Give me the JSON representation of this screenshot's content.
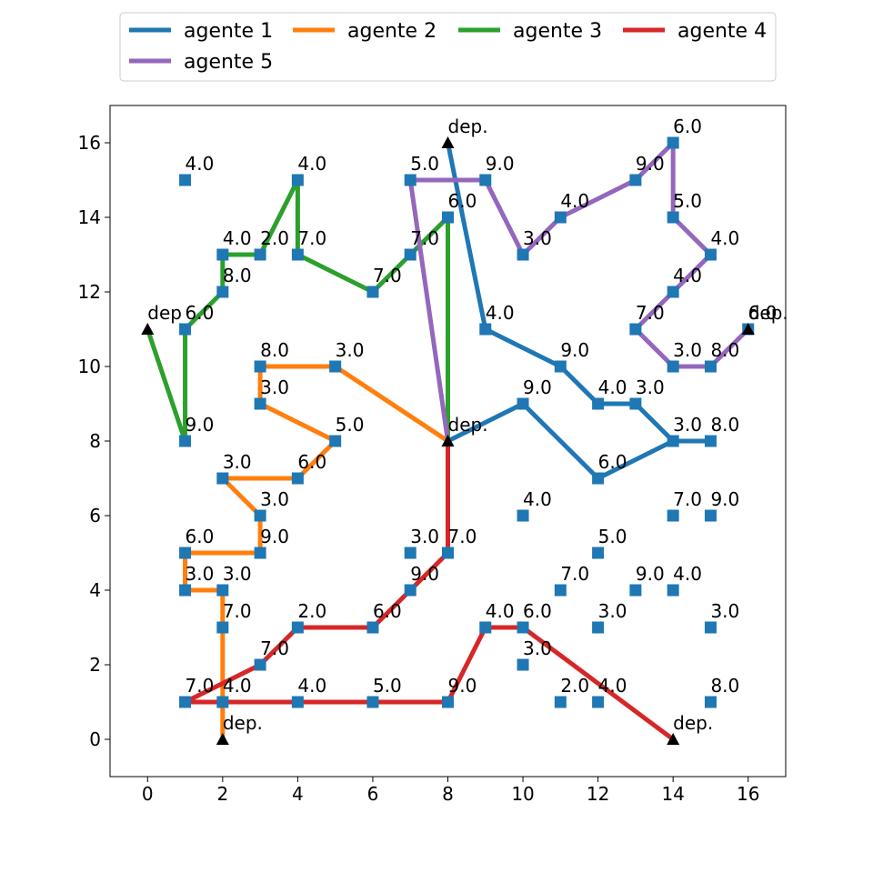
{
  "chart_data": {
    "type": "line",
    "xlim": [
      -1,
      17
    ],
    "ylim": [
      -1,
      17
    ],
    "x_ticks": [
      0,
      2,
      4,
      6,
      8,
      10,
      12,
      14,
      16
    ],
    "y_ticks": [
      0,
      2,
      4,
      6,
      8,
      10,
      12,
      14,
      16
    ],
    "grid": false,
    "legend_position": "top",
    "series": [
      {
        "name": "agente 1",
        "color": "#1f77b4",
        "path": [
          [
            8,
            16
          ],
          [
            9,
            11
          ],
          [
            11,
            10
          ],
          [
            12,
            9
          ],
          [
            13,
            9
          ],
          [
            14,
            8
          ],
          [
            15,
            8
          ],
          [
            14,
            8
          ],
          [
            12,
            7
          ],
          [
            10,
            9
          ],
          [
            8,
            8
          ]
        ]
      },
      {
        "name": "agente 2",
        "color": "#ff7f0e",
        "path": [
          [
            2,
            0
          ],
          [
            2,
            1
          ],
          [
            2,
            3
          ],
          [
            2,
            4
          ],
          [
            1,
            4
          ],
          [
            1,
            5
          ],
          [
            3,
            5
          ],
          [
            3,
            6
          ],
          [
            2,
            7
          ],
          [
            4,
            7
          ],
          [
            5,
            8
          ],
          [
            3,
            9
          ],
          [
            3,
            10
          ],
          [
            5,
            10
          ],
          [
            8,
            8
          ]
        ]
      },
      {
        "name": "agente 3",
        "color": "#2ca02c",
        "path": [
          [
            0,
            11
          ],
          [
            1,
            8
          ],
          [
            1,
            11
          ],
          [
            2,
            12
          ],
          [
            2,
            13
          ],
          [
            3,
            13
          ],
          [
            4,
            15
          ],
          [
            4,
            13
          ],
          [
            6,
            12
          ],
          [
            7,
            13
          ],
          [
            8,
            14
          ],
          [
            8,
            8
          ]
        ]
      },
      {
        "name": "agente 4",
        "color": "#d62728",
        "path": [
          [
            14,
            0
          ],
          [
            10,
            3
          ],
          [
            9,
            3
          ],
          [
            8,
            1
          ],
          [
            6,
            1
          ],
          [
            4,
            1
          ],
          [
            2,
            1
          ],
          [
            1,
            1
          ],
          [
            3,
            2
          ],
          [
            4,
            3
          ],
          [
            6,
            3
          ],
          [
            7,
            4
          ],
          [
            8,
            5
          ],
          [
            8,
            8
          ]
        ]
      },
      {
        "name": "agente 5",
        "color": "#9467bd",
        "path": [
          [
            16,
            11
          ],
          [
            15,
            10
          ],
          [
            14,
            10
          ],
          [
            13,
            11
          ],
          [
            14,
            12
          ],
          [
            15,
            13
          ],
          [
            14,
            14
          ],
          [
            14,
            16
          ],
          [
            13,
            15
          ],
          [
            11,
            14
          ],
          [
            10,
            13
          ],
          [
            9,
            15
          ],
          [
            7,
            15
          ],
          [
            8,
            8
          ]
        ]
      }
    ],
    "depots": [
      {
        "x": 8,
        "y": 16,
        "label": "dep."
      },
      {
        "x": 0,
        "y": 11,
        "label": "dep"
      },
      {
        "x": 16,
        "y": 11,
        "label": "dep."
      },
      {
        "x": 8,
        "y": 8,
        "label": "dep."
      },
      {
        "x": 2,
        "y": 0,
        "label": "dep."
      },
      {
        "x": 14,
        "y": 0,
        "label": "dep."
      }
    ],
    "customers": [
      {
        "x": 1,
        "y": 15,
        "label": "4.0"
      },
      {
        "x": 4,
        "y": 15,
        "label": "4.0"
      },
      {
        "x": 7,
        "y": 15,
        "label": "5.0"
      },
      {
        "x": 9,
        "y": 15,
        "label": "9.0"
      },
      {
        "x": 13,
        "y": 15,
        "label": "9.0"
      },
      {
        "x": 14,
        "y": 16,
        "label": "6.0"
      },
      {
        "x": 8,
        "y": 14,
        "label": "6.0"
      },
      {
        "x": 11,
        "y": 14,
        "label": "4.0"
      },
      {
        "x": 14,
        "y": 14,
        "label": "5.0"
      },
      {
        "x": 2,
        "y": 13,
        "label": "4.0"
      },
      {
        "x": 3,
        "y": 13,
        "label": "2.0"
      },
      {
        "x": 4,
        "y": 13,
        "label": "7.0"
      },
      {
        "x": 7,
        "y": 13,
        "label": "7.0"
      },
      {
        "x": 10,
        "y": 13,
        "label": "3.0"
      },
      {
        "x": 15,
        "y": 13,
        "label": "4.0"
      },
      {
        "x": 2,
        "y": 12,
        "label": "8.0"
      },
      {
        "x": 6,
        "y": 12,
        "label": "7.0"
      },
      {
        "x": 14,
        "y": 12,
        "label": "4.0"
      },
      {
        "x": 1,
        "y": 11,
        "label": "6.0"
      },
      {
        "x": 9,
        "y": 11,
        "label": "4.0"
      },
      {
        "x": 13,
        "y": 11,
        "label": "7.0"
      },
      {
        "x": 16,
        "y": 11,
        "label": "6.0"
      },
      {
        "x": 3,
        "y": 10,
        "label": "8.0"
      },
      {
        "x": 5,
        "y": 10,
        "label": "3.0"
      },
      {
        "x": 11,
        "y": 10,
        "label": "9.0"
      },
      {
        "x": 14,
        "y": 10,
        "label": "3.0"
      },
      {
        "x": 15,
        "y": 10,
        "label": "8.0"
      },
      {
        "x": 3,
        "y": 9,
        "label": "3.0"
      },
      {
        "x": 10,
        "y": 9,
        "label": "9.0"
      },
      {
        "x": 12,
        "y": 9,
        "label": "4.0"
      },
      {
        "x": 13,
        "y": 9,
        "label": "3.0"
      },
      {
        "x": 1,
        "y": 8,
        "label": "9.0"
      },
      {
        "x": 5,
        "y": 8,
        "label": "5.0"
      },
      {
        "x": 14,
        "y": 8,
        "label": "3.0"
      },
      {
        "x": 15,
        "y": 8,
        "label": "8.0"
      },
      {
        "x": 2,
        "y": 7,
        "label": "3.0"
      },
      {
        "x": 4,
        "y": 7,
        "label": "6.0"
      },
      {
        "x": 12,
        "y": 7,
        "label": "6.0"
      },
      {
        "x": 3,
        "y": 6,
        "label": "3.0"
      },
      {
        "x": 10,
        "y": 6,
        "label": "4.0"
      },
      {
        "x": 14,
        "y": 6,
        "label": "7.0"
      },
      {
        "x": 15,
        "y": 6,
        "label": "9.0"
      },
      {
        "x": 1,
        "y": 5,
        "label": "6.0"
      },
      {
        "x": 3,
        "y": 5,
        "label": "9.0"
      },
      {
        "x": 7,
        "y": 5,
        "label": "3.0"
      },
      {
        "x": 8,
        "y": 5,
        "label": "7.0"
      },
      {
        "x": 12,
        "y": 5,
        "label": "5.0"
      },
      {
        "x": 1,
        "y": 4,
        "label": "3.0"
      },
      {
        "x": 2,
        "y": 4,
        "label": "3.0"
      },
      {
        "x": 7,
        "y": 4,
        "label": "9.0"
      },
      {
        "x": 11,
        "y": 4,
        "label": "7.0"
      },
      {
        "x": 13,
        "y": 4,
        "label": "9.0"
      },
      {
        "x": 14,
        "y": 4,
        "label": "4.0"
      },
      {
        "x": 2,
        "y": 3,
        "label": "7.0"
      },
      {
        "x": 4,
        "y": 3,
        "label": "2.0"
      },
      {
        "x": 6,
        "y": 3,
        "label": "6.0"
      },
      {
        "x": 9,
        "y": 3,
        "label": "4.0"
      },
      {
        "x": 10,
        "y": 3,
        "label": "6.0"
      },
      {
        "x": 12,
        "y": 3,
        "label": "3.0"
      },
      {
        "x": 15,
        "y": 3,
        "label": "3.0"
      },
      {
        "x": 3,
        "y": 2,
        "label": "7.0"
      },
      {
        "x": 10,
        "y": 2,
        "label": "3.0"
      },
      {
        "x": 1,
        "y": 1,
        "label": "7.0"
      },
      {
        "x": 2,
        "y": 1,
        "label": "4.0"
      },
      {
        "x": 4,
        "y": 1,
        "label": "4.0"
      },
      {
        "x": 6,
        "y": 1,
        "label": "5.0"
      },
      {
        "x": 8,
        "y": 1,
        "label": "9.0"
      },
      {
        "x": 11,
        "y": 1,
        "label": "2.0"
      },
      {
        "x": 12,
        "y": 1,
        "label": "4.0"
      },
      {
        "x": 15,
        "y": 1,
        "label": "8.0"
      }
    ],
    "customer_color": "#1f77b4",
    "depot_color": "#000000"
  }
}
